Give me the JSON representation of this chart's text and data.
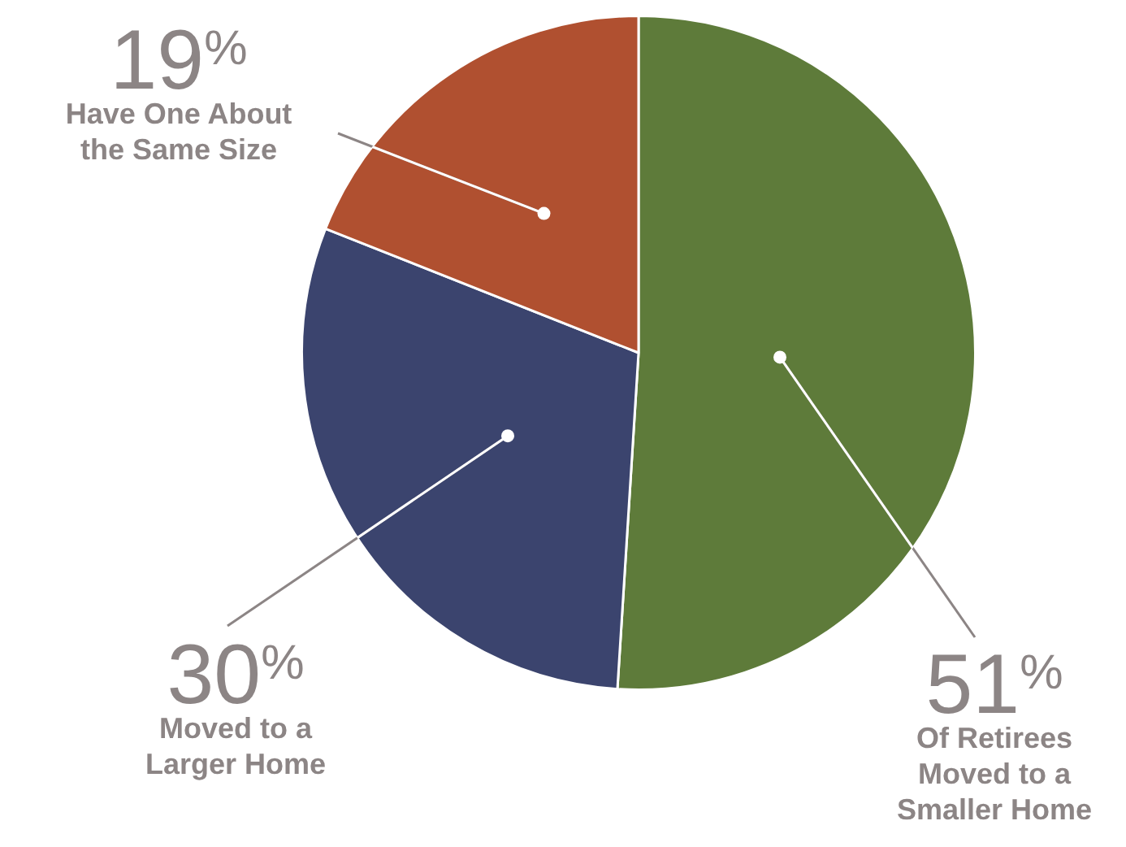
{
  "chart_data": {
    "type": "pie",
    "categories": [
      "Of Retirees Moved to a Smaller Home",
      "Moved to a Larger Home",
      "Have One About the Same Size"
    ],
    "values": [
      51,
      30,
      19
    ],
    "colors": [
      "#5e7b3a",
      "#3b446e",
      "#b05030"
    ],
    "value_labels": [
      "51%",
      "30%",
      "19%"
    ],
    "legend": false
  }
}
